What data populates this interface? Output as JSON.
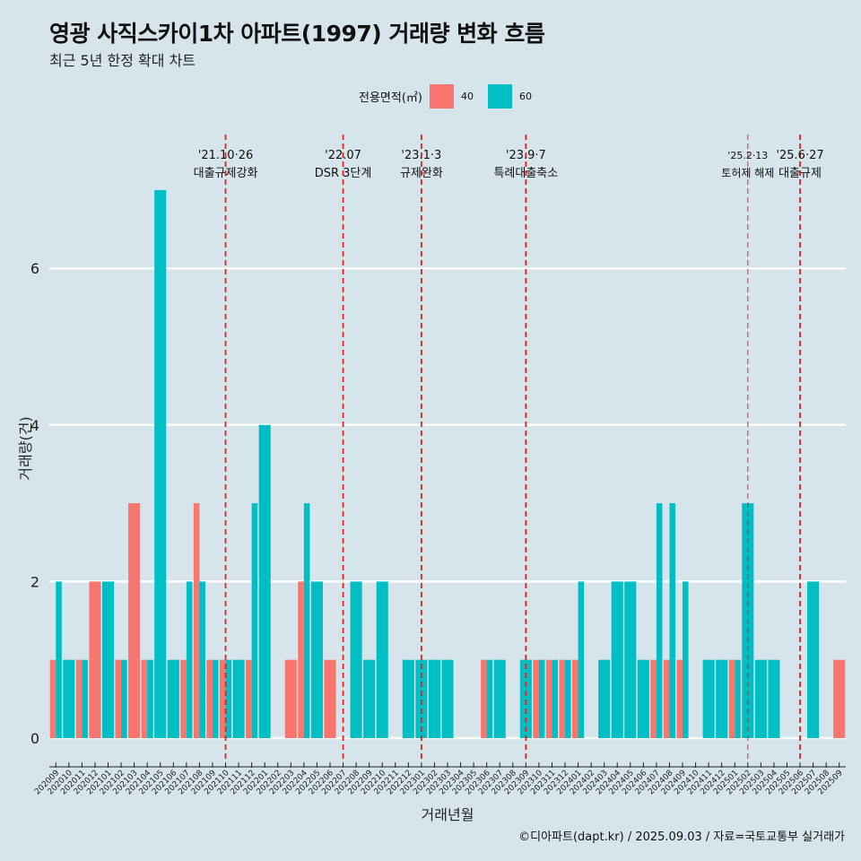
{
  "title": "영광 사직스카이1차 아파트(1997) 거래량 변화 흐름",
  "subtitle": "최근 5년 한정 확대 차트",
  "legend": {
    "title": "전용면적(㎡)",
    "items": [
      {
        "label": "40",
        "color": "#f8766d"
      },
      {
        "label": "60",
        "color": "#00bfc4"
      }
    ]
  },
  "caption": "©디아파트(dapt.kr) / 2025.09.03 / 자료=국토교통부 실거래가",
  "chart_data": {
    "type": "bar",
    "xlabel": "거래년월",
    "ylabel": "거래량(건)",
    "ylim": [
      0,
      7
    ],
    "yticks": [
      0,
      2,
      4,
      6
    ],
    "categories": [
      "202009",
      "202010",
      "202011",
      "202012",
      "202101",
      "202102",
      "202103",
      "202104",
      "202105",
      "202106",
      "202107",
      "202108",
      "202109",
      "202110",
      "202111",
      "202112",
      "202201",
      "202202",
      "202203",
      "202204",
      "202205",
      "202206",
      "202207",
      "202208",
      "202209",
      "202210",
      "202211",
      "202212",
      "202301",
      "202302",
      "202303",
      "202304",
      "202305",
      "202306",
      "202307",
      "202308",
      "202309",
      "202310",
      "202311",
      "202312",
      "202401",
      "202402",
      "202403",
      "202404",
      "202405",
      "202406",
      "202407",
      "202408",
      "202409",
      "202410",
      "202411",
      "202412",
      "202501",
      "202502",
      "202503",
      "202504",
      "202505",
      "202506",
      "202507",
      "202508",
      "202509"
    ],
    "series": [
      {
        "name": "40",
        "color": "#f8766d",
        "values": [
          1,
          0,
          1,
          2,
          0,
          1,
          3,
          1,
          0,
          0,
          1,
          3,
          1,
          1,
          0,
          1,
          0,
          0,
          1,
          2,
          0,
          1,
          0,
          0,
          0,
          0,
          0,
          0,
          0,
          0,
          0,
          0,
          0,
          1,
          0,
          0,
          0,
          1,
          1,
          1,
          1,
          0,
          0,
          0,
          0,
          0,
          1,
          1,
          1,
          0,
          0,
          0,
          1,
          0,
          0,
          0,
          0,
          0,
          0,
          0,
          1
        ]
      },
      {
        "name": "60",
        "color": "#00bfc4",
        "values": [
          2,
          1,
          1,
          0,
          2,
          1,
          0,
          1,
          7,
          1,
          2,
          2,
          1,
          1,
          1,
          3,
          4,
          0,
          0,
          3,
          2,
          0,
          0,
          2,
          1,
          2,
          0,
          1,
          1,
          1,
          1,
          0,
          0,
          1,
          1,
          0,
          1,
          1,
          1,
          1,
          2,
          0,
          1,
          2,
          2,
          1,
          3,
          3,
          2,
          0,
          1,
          1,
          1,
          3,
          1,
          1,
          0,
          0,
          2,
          0,
          0
        ]
      }
    ],
    "annotations": [
      {
        "category": "202110",
        "date": "'21.10·26",
        "label": "대출규제강화"
      },
      {
        "category": "202207",
        "date": "'22.07",
        "label": "DSR 3단계"
      },
      {
        "category": "202301",
        "date": "'23.1·3",
        "label": "규제완화"
      },
      {
        "category": "202309",
        "date": "'23.9·7",
        "label": "특례대출축소"
      },
      {
        "category": "202502",
        "date": "'25.2·13",
        "label": "토허제 해제"
      },
      {
        "category": "202506",
        "date": "'25.6·27",
        "label": "대출규제"
      }
    ],
    "grid": true,
    "legend_position": "top"
  }
}
